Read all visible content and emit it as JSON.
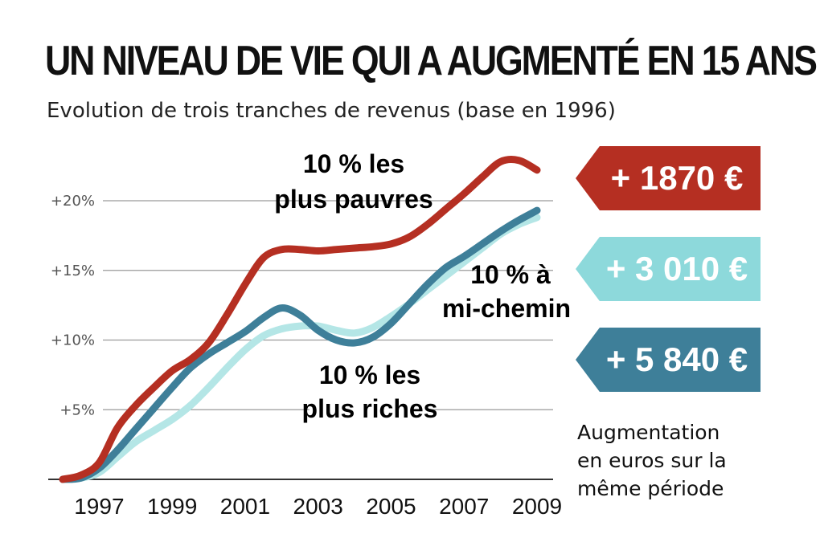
{
  "title": "UN NIVEAU DE VIE QUI A AUGMENTÉ EN 15 ANS",
  "subtitle": "Evolution de trois tranches de revenus (base en 1996)",
  "colors": {
    "pauvres": "#B52F22",
    "mi_chemin": "#B4E6E6",
    "riches": "#3E7F99",
    "badge_mi_chemin": "#8DD9DB",
    "grid": "#9a9a9a"
  },
  "chart_data": {
    "type": "line",
    "x_ticks": [
      "1997",
      "1999",
      "2001",
      "2003",
      "2005",
      "2007",
      "2009"
    ],
    "y_ticks": [
      "+5%",
      "+10%",
      "+15%",
      "+20%"
    ],
    "ylim": [
      0,
      20
    ],
    "xlim": [
      1996,
      2009.3
    ],
    "series": [
      {
        "key": "mi_chemin",
        "label_lines": [
          "10 % à",
          "mi-chemin"
        ],
        "x": [
          1996,
          1996.5,
          1997,
          1997.5,
          1998,
          1998.5,
          1999,
          1999.5,
          2000,
          2000.5,
          2001,
          2001.5,
          2002,
          2002.5,
          2003,
          2003.5,
          2004,
          2004.5,
          2005,
          2005.5,
          2006,
          2006.5,
          2007,
          2007.5,
          2008,
          2008.5,
          2009
        ],
        "values": [
          0,
          0.1,
          0.5,
          1.6,
          2.7,
          3.5,
          4.3,
          5.3,
          6.6,
          8.0,
          9.3,
          10.3,
          10.8,
          11.0,
          11.0,
          10.7,
          10.5,
          10.9,
          11.7,
          12.6,
          13.6,
          14.6,
          15.6,
          16.6,
          17.6,
          18.3,
          18.8
        ]
      },
      {
        "key": "riches",
        "label_lines": [
          "10 % les",
          "plus riches"
        ],
        "x": [
          1996,
          1996.5,
          1997,
          1997.5,
          1998,
          1998.5,
          1999,
          1999.5,
          2000,
          2000.5,
          2001,
          2001.5,
          2002,
          2002.5,
          2003,
          2003.5,
          2004,
          2004.5,
          2005,
          2005.5,
          2006,
          2006.5,
          2007,
          2007.5,
          2008,
          2008.5,
          2009
        ],
        "values": [
          0,
          0.1,
          0.8,
          2.1,
          3.6,
          5.1,
          6.6,
          8.0,
          9.0,
          9.8,
          10.6,
          11.6,
          12.3,
          11.8,
          10.7,
          10.0,
          9.8,
          10.2,
          11.2,
          12.6,
          14.0,
          15.2,
          16.0,
          16.9,
          17.8,
          18.6,
          19.3
        ]
      },
      {
        "key": "pauvres",
        "label_lines": [
          "10 % les",
          "plus pauvres"
        ],
        "x": [
          1996,
          1996.5,
          1997,
          1997.5,
          1998,
          1998.5,
          1999,
          1999.5,
          2000,
          2000.5,
          2001,
          2001.5,
          2002,
          2002.5,
          2003,
          2003.5,
          2004,
          2004.5,
          2005,
          2005.5,
          2006,
          2006.5,
          2007,
          2007.5,
          2008,
          2008.5,
          2009
        ],
        "values": [
          0,
          0.3,
          1.2,
          3.7,
          5.3,
          6.6,
          7.8,
          8.6,
          9.8,
          11.8,
          14.0,
          15.9,
          16.5,
          16.5,
          16.4,
          16.5,
          16.6,
          16.7,
          16.9,
          17.4,
          18.3,
          19.4,
          20.5,
          21.7,
          22.8,
          22.9,
          22.2
        ]
      }
    ]
  },
  "badges": [
    {
      "key": "pauvres",
      "text": "+ 1870 €"
    },
    {
      "key": "mi_chemin",
      "text": "+ 3 010 €"
    },
    {
      "key": "riches",
      "text": "+ 5 840 €"
    }
  ],
  "note_lines": [
    "Augmentation",
    "en euros sur la",
    "même période"
  ]
}
